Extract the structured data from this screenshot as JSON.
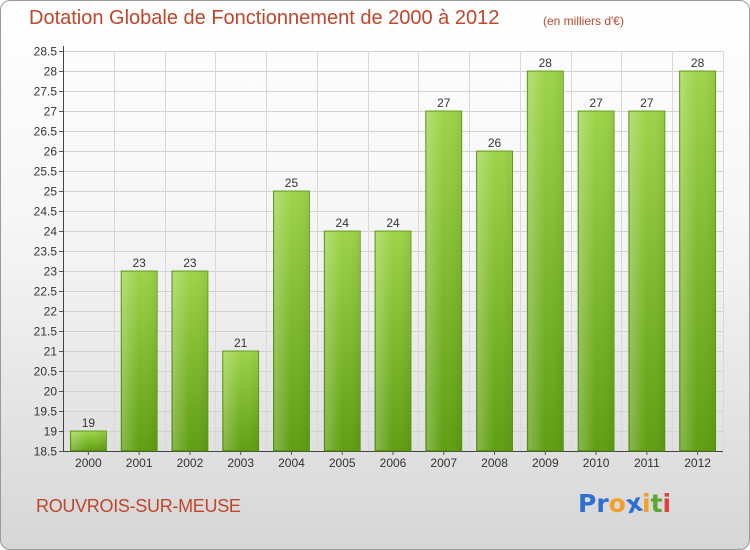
{
  "header": {
    "title": "Dotation Globale de Fonctionnement de 2000 à 2012",
    "subtitle": "(en milliers d'€)"
  },
  "footer": {
    "commune": "ROUVROIS-SUR-MEUSE",
    "logo_text": "Proxiti"
  },
  "colors": {
    "title": "#c0452b",
    "bar_light": "#9ed449",
    "bar_dark": "#5f9e12"
  },
  "chart_data": {
    "type": "bar",
    "title": "Dotation Globale de Fonctionnement de 2000 à 2012",
    "subtitle": "(en milliers d'€)",
    "xlabel": "",
    "ylabel": "",
    "categories": [
      "2000",
      "2001",
      "2002",
      "2003",
      "2004",
      "2005",
      "2006",
      "2007",
      "2008",
      "2009",
      "2010",
      "2011",
      "2012"
    ],
    "values": [
      19,
      23,
      23,
      21,
      25,
      24,
      24,
      27,
      26,
      28,
      27,
      27,
      28
    ],
    "ylim": [
      18.5,
      28.5
    ],
    "yticks": [
      "18.5",
      "19",
      "19.5",
      "20",
      "20.5",
      "21",
      "21.5",
      "22",
      "22.5",
      "23",
      "23.5",
      "24",
      "24.5",
      "25",
      "25.5",
      "26",
      "26.5",
      "27",
      "27.5",
      "28",
      "28.5"
    ],
    "grid": true
  }
}
